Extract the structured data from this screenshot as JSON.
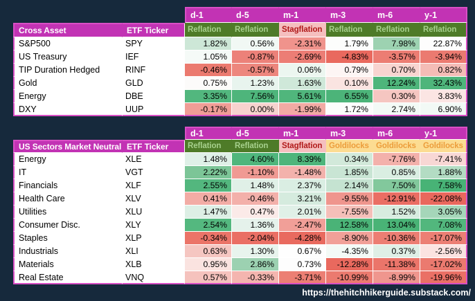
{
  "page": {
    "background": "#16293c",
    "footer_url": "https://thehitchhikerguide.substack.com/"
  },
  "palette": {
    "header_magenta": "#c233b4",
    "outer_border": "#d94fc5",
    "gridline": "#ffffff",
    "regimes": {
      "Reflation": {
        "bg": "#4e7b28",
        "fg": "#a6d08c"
      },
      "Stagflation": {
        "bg": "#f5bfbf",
        "fg": "#b11a1a"
      },
      "Goldilocks": {
        "bg": "#fcdc92",
        "fg": "#ec9d3b"
      }
    }
  },
  "periods": [
    "d-1",
    "d-5",
    "m-1",
    "m-3",
    "m-6",
    "y-1"
  ],
  "tables": [
    {
      "title": "Cross Asset",
      "ticker_header": "ETF Ticker",
      "row_template": "23px 21px repeat(6, 19px)",
      "regimes": [
        "Reflation",
        "Reflation",
        "Stagflation",
        "Reflation",
        "Reflation",
        "Reflation"
      ],
      "rows": [
        {
          "label": "S&P500",
          "ticker": "SPY",
          "cells": [
            {
              "v": "1.82%",
              "bg": "#cde7d7"
            },
            {
              "v": "0.56%",
              "bg": "#f1f8f4"
            },
            {
              "v": "-2.31%",
              "bg": "#f0938c"
            },
            {
              "v": "1.79%",
              "bg": "#fcfdfc"
            },
            {
              "v": "7.98%",
              "bg": "#9dd2b1"
            },
            {
              "v": "22.87%",
              "bg": "#fdfdfd"
            }
          ]
        },
        {
          "label": "US Treasury",
          "ticker": "IEF",
          "cells": [
            {
              "v": "1.05%",
              "bg": "#f5faf7"
            },
            {
              "v": "-0.87%",
              "bg": "#ec8179"
            },
            {
              "v": "-2.69%",
              "bg": "#ec7d75"
            },
            {
              "v": "-4.83%",
              "bg": "#e9695e"
            },
            {
              "v": "-3.57%",
              "bg": "#ec7d73"
            },
            {
              "v": "-3.94%",
              "bg": "#eb7a70"
            }
          ]
        },
        {
          "label": "TIP Duration Hedged",
          "ticker": "RINF",
          "cells": [
            {
              "v": "-0.46%",
              "bg": "#eb7a6f"
            },
            {
              "v": "-0.57%",
              "bg": "#ed867d"
            },
            {
              "v": "0.06%",
              "bg": "#ecf6f0"
            },
            {
              "v": "0.79%",
              "bg": "#fdf5f4"
            },
            {
              "v": "0.70%",
              "bg": "#f8d4d0"
            },
            {
              "v": "0.82%",
              "bg": "#f4bcb6"
            }
          ]
        },
        {
          "label": "Gold",
          "ticker": "GLD",
          "cells": [
            {
              "v": "0.75%",
              "bg": "#fcfbfa"
            },
            {
              "v": "1.23%",
              "bg": "#e8f4ee"
            },
            {
              "v": "1.63%",
              "bg": "#cfe8d9"
            },
            {
              "v": "0.10%",
              "bg": "#fae4e1"
            },
            {
              "v": "12.24%",
              "bg": "#4eb57b"
            },
            {
              "v": "32.43%",
              "bg": "#4eb57b"
            }
          ]
        },
        {
          "label": "Energy",
          "ticker": "DBE",
          "cells": [
            {
              "v": "3.35%",
              "bg": "#52b77e"
            },
            {
              "v": "7.56%",
              "bg": "#4eb57b"
            },
            {
              "v": "5.61%",
              "bg": "#50b67c"
            },
            {
              "v": "6.55%",
              "bg": "#4cb479"
            },
            {
              "v": "0.30%",
              "bg": "#f5c6c1"
            },
            {
              "v": "3.83%",
              "bg": "#fbe5e3"
            }
          ]
        },
        {
          "label": "DXY",
          "ticker": "UUP",
          "cells": [
            {
              "v": "-0.17%",
              "bg": "#f09d96"
            },
            {
              "v": "0.00%",
              "bg": "#f7d2ce"
            },
            {
              "v": "-1.99%",
              "bg": "#f2aaa4"
            },
            {
              "v": "1.72%",
              "bg": "#fcfdfc"
            },
            {
              "v": "2.74%",
              "bg": "#f3faf6"
            },
            {
              "v": "6.90%",
              "bg": "#f2f9f5"
            }
          ]
        }
      ]
    },
    {
      "title": "US Sectors Market Neutral",
      "ticker_header": "ETF Ticker",
      "row_template": "19px 19px repeat(10, 19px)",
      "regimes": [
        "Reflation",
        "Reflation",
        "Stagflation",
        "Goldilocks",
        "Goldilocks",
        "Goldilocks"
      ],
      "rows": [
        {
          "label": "Energy",
          "ticker": "XLE",
          "cells": [
            {
              "v": "1.48%",
              "bg": "#dff0e7"
            },
            {
              "v": "4.60%",
              "bg": "#4fb67c"
            },
            {
              "v": "8.39%",
              "bg": "#4eb57b"
            },
            {
              "v": "0.34%",
              "bg": "#d2e9da"
            },
            {
              "v": "-7.76%",
              "bg": "#f3b1ab"
            },
            {
              "v": "-7.41%",
              "bg": "#f8d7d4"
            }
          ]
        },
        {
          "label": "IT",
          "ticker": "VGT",
          "cells": [
            {
              "v": "2.22%",
              "bg": "#7cc597"
            },
            {
              "v": "-1.10%",
              "bg": "#f09a93"
            },
            {
              "v": "-1.48%",
              "bg": "#f3b2ac"
            },
            {
              "v": "1.85%",
              "bg": "#c9e5d4"
            },
            {
              "v": "0.85%",
              "bg": "#daeee2"
            },
            {
              "v": "1.88%",
              "bg": "#b3dcc3"
            }
          ]
        },
        {
          "label": "Financials",
          "ticker": "XLF",
          "cells": [
            {
              "v": "2.55%",
              "bg": "#53b77e"
            },
            {
              "v": "1.48%",
              "bg": "#e0f0e7"
            },
            {
              "v": "2.37%",
              "bg": "#daeee3"
            },
            {
              "v": "2.14%",
              "bg": "#c5e3d1"
            },
            {
              "v": "7.50%",
              "bg": "#82c89c"
            },
            {
              "v": "7.58%",
              "bg": "#48b376"
            }
          ]
        },
        {
          "label": "Health Care",
          "ticker": "XLV",
          "cells": [
            {
              "v": "0.41%",
              "bg": "#f2aca5"
            },
            {
              "v": "-0.46%",
              "bg": "#f3b0aa"
            },
            {
              "v": "3.21%",
              "bg": "#d5ebde"
            },
            {
              "v": "-9.55%",
              "bg": "#ef958d"
            },
            {
              "v": "-12.91%",
              "bg": "#ea6e64"
            },
            {
              "v": "-22.08%",
              "bg": "#e9685d"
            }
          ]
        },
        {
          "label": "Utilities",
          "ticker": "XLU",
          "cells": [
            {
              "v": "1.47%",
              "bg": "#ddefe5"
            },
            {
              "v": "0.47%",
              "bg": "#fbeae8"
            },
            {
              "v": "2.01%",
              "bg": "#e0f0e7"
            },
            {
              "v": "-7.55%",
              "bg": "#f5bfb9"
            },
            {
              "v": "1.52%",
              "bg": "#d7ecdf"
            },
            {
              "v": "3.05%",
              "bg": "#a5d6b9"
            }
          ]
        },
        {
          "label": "Consumer Disc.",
          "ticker": "XLY",
          "cells": [
            {
              "v": "2.54%",
              "bg": "#54b87f"
            },
            {
              "v": "1.36%",
              "bg": "#e5f2eb"
            },
            {
              "v": "-2.47%",
              "bg": "#f19f98"
            },
            {
              "v": "12.58%",
              "bg": "#4ab377"
            },
            {
              "v": "13.04%",
              "bg": "#49b376"
            },
            {
              "v": "7.08%",
              "bg": "#52b77d"
            }
          ]
        },
        {
          "label": "Staples",
          "ticker": "XLP",
          "cells": [
            {
              "v": "-0.34%",
              "bg": "#eb7468"
            },
            {
              "v": "-2.04%",
              "bg": "#ea6f64"
            },
            {
              "v": "-4.28%",
              "bg": "#e96a5f"
            },
            {
              "v": "-8.90%",
              "bg": "#f1a098"
            },
            {
              "v": "-10.36%",
              "bg": "#ec7e73"
            },
            {
              "v": "-17.07%",
              "bg": "#ec7f74"
            }
          ]
        },
        {
          "label": "Industrials",
          "ticker": "XLI",
          "cells": [
            {
              "v": "0.63%",
              "bg": "#f5c6c1"
            },
            {
              "v": "1.30%",
              "bg": "#e8f4ed"
            },
            {
              "v": "0.67%",
              "bg": "#fefefe"
            },
            {
              "v": "-4.35%",
              "bg": "#f3faf6"
            },
            {
              "v": "0.37%",
              "bg": "#dfefe6"
            },
            {
              "v": "-2.56%",
              "bg": "#fbe3e1"
            }
          ]
        },
        {
          "label": "Materials",
          "ticker": "XLB",
          "cells": [
            {
              "v": "0.95%",
              "bg": "#fae3e0"
            },
            {
              "v": "2.86%",
              "bg": "#9cd1b1"
            },
            {
              "v": "0.73%",
              "bg": "#fdfdfd"
            },
            {
              "v": "-12.28%",
              "bg": "#e9695e"
            },
            {
              "v": "-11.38%",
              "bg": "#eb756a"
            },
            {
              "v": "-17.02%",
              "bg": "#eb7a6f"
            }
          ]
        },
        {
          "label": "Real Estate",
          "ticker": "VNQ",
          "cells": [
            {
              "v": "0.57%",
              "bg": "#f5c2bd"
            },
            {
              "v": "-0.33%",
              "bg": "#f4b5af"
            },
            {
              "v": "-3.71%",
              "bg": "#ec7f74"
            },
            {
              "v": "-10.99%",
              "bg": "#eb7a6f"
            },
            {
              "v": "-8.99%",
              "bg": "#ef968e"
            },
            {
              "v": "-19.96%",
              "bg": "#ea7065"
            }
          ]
        }
      ]
    }
  ],
  "chart_data": [
    {
      "type": "table",
      "title": "Cross Asset",
      "unit": "%",
      "columns": [
        "d-1",
        "d-5",
        "m-1",
        "m-3",
        "m-6",
        "y-1"
      ],
      "column_regimes": [
        "Reflation",
        "Reflation",
        "Stagflation",
        "Reflation",
        "Reflation",
        "Reflation"
      ],
      "cell_color_rule": "red-white-green conditional formatting per column",
      "rows": [
        {
          "label": "S&P500",
          "ticker": "SPY",
          "values": [
            1.82,
            0.56,
            -2.31,
            1.79,
            7.98,
            22.87
          ]
        },
        {
          "label": "US Treasury",
          "ticker": "IEF",
          "values": [
            1.05,
            -0.87,
            -2.69,
            -4.83,
            -3.57,
            -3.94
          ]
        },
        {
          "label": "TIP Duration Hedged",
          "ticker": "RINF",
          "values": [
            -0.46,
            -0.57,
            0.06,
            0.79,
            0.7,
            0.82
          ]
        },
        {
          "label": "Gold",
          "ticker": "GLD",
          "values": [
            0.75,
            1.23,
            1.63,
            0.1,
            12.24,
            32.43
          ]
        },
        {
          "label": "Energy",
          "ticker": "DBE",
          "values": [
            3.35,
            7.56,
            5.61,
            6.55,
            0.3,
            3.83
          ]
        },
        {
          "label": "DXY",
          "ticker": "UUP",
          "values": [
            -0.17,
            0.0,
            -1.99,
            1.72,
            2.74,
            6.9
          ]
        }
      ]
    },
    {
      "type": "table",
      "title": "US Sectors Market Neutral",
      "unit": "%",
      "columns": [
        "d-1",
        "d-5",
        "m-1",
        "m-3",
        "m-6",
        "y-1"
      ],
      "column_regimes": [
        "Reflation",
        "Reflation",
        "Stagflation",
        "Goldilocks",
        "Goldilocks",
        "Goldilocks"
      ],
      "cell_color_rule": "red-white-green conditional formatting per column",
      "rows": [
        {
          "label": "Energy",
          "ticker": "XLE",
          "values": [
            1.48,
            4.6,
            8.39,
            0.34,
            -7.76,
            -7.41
          ]
        },
        {
          "label": "IT",
          "ticker": "VGT",
          "values": [
            2.22,
            -1.1,
            -1.48,
            1.85,
            0.85,
            1.88
          ]
        },
        {
          "label": "Financials",
          "ticker": "XLF",
          "values": [
            2.55,
            1.48,
            2.37,
            2.14,
            7.5,
            7.58
          ]
        },
        {
          "label": "Health Care",
          "ticker": "XLV",
          "values": [
            0.41,
            -0.46,
            3.21,
            -9.55,
            -12.91,
            -22.08
          ]
        },
        {
          "label": "Utilities",
          "ticker": "XLU",
          "values": [
            1.47,
            0.47,
            2.01,
            -7.55,
            1.52,
            3.05
          ]
        },
        {
          "label": "Consumer Disc.",
          "ticker": "XLY",
          "values": [
            2.54,
            1.36,
            -2.47,
            12.58,
            13.04,
            7.08
          ]
        },
        {
          "label": "Staples",
          "ticker": "XLP",
          "values": [
            -0.34,
            -2.04,
            -4.28,
            -8.9,
            -10.36,
            -17.07
          ]
        },
        {
          "label": "Industrials",
          "ticker": "XLI",
          "values": [
            0.63,
            1.3,
            0.67,
            -4.35,
            0.37,
            -2.56
          ]
        },
        {
          "label": "Materials",
          "ticker": "XLB",
          "values": [
            0.95,
            2.86,
            0.73,
            -12.28,
            -11.38,
            -17.02
          ]
        },
        {
          "label": "Real Estate",
          "ticker": "VNQ",
          "values": [
            0.57,
            -0.33,
            -3.71,
            -10.99,
            -8.99,
            -19.96
          ]
        }
      ]
    }
  ]
}
